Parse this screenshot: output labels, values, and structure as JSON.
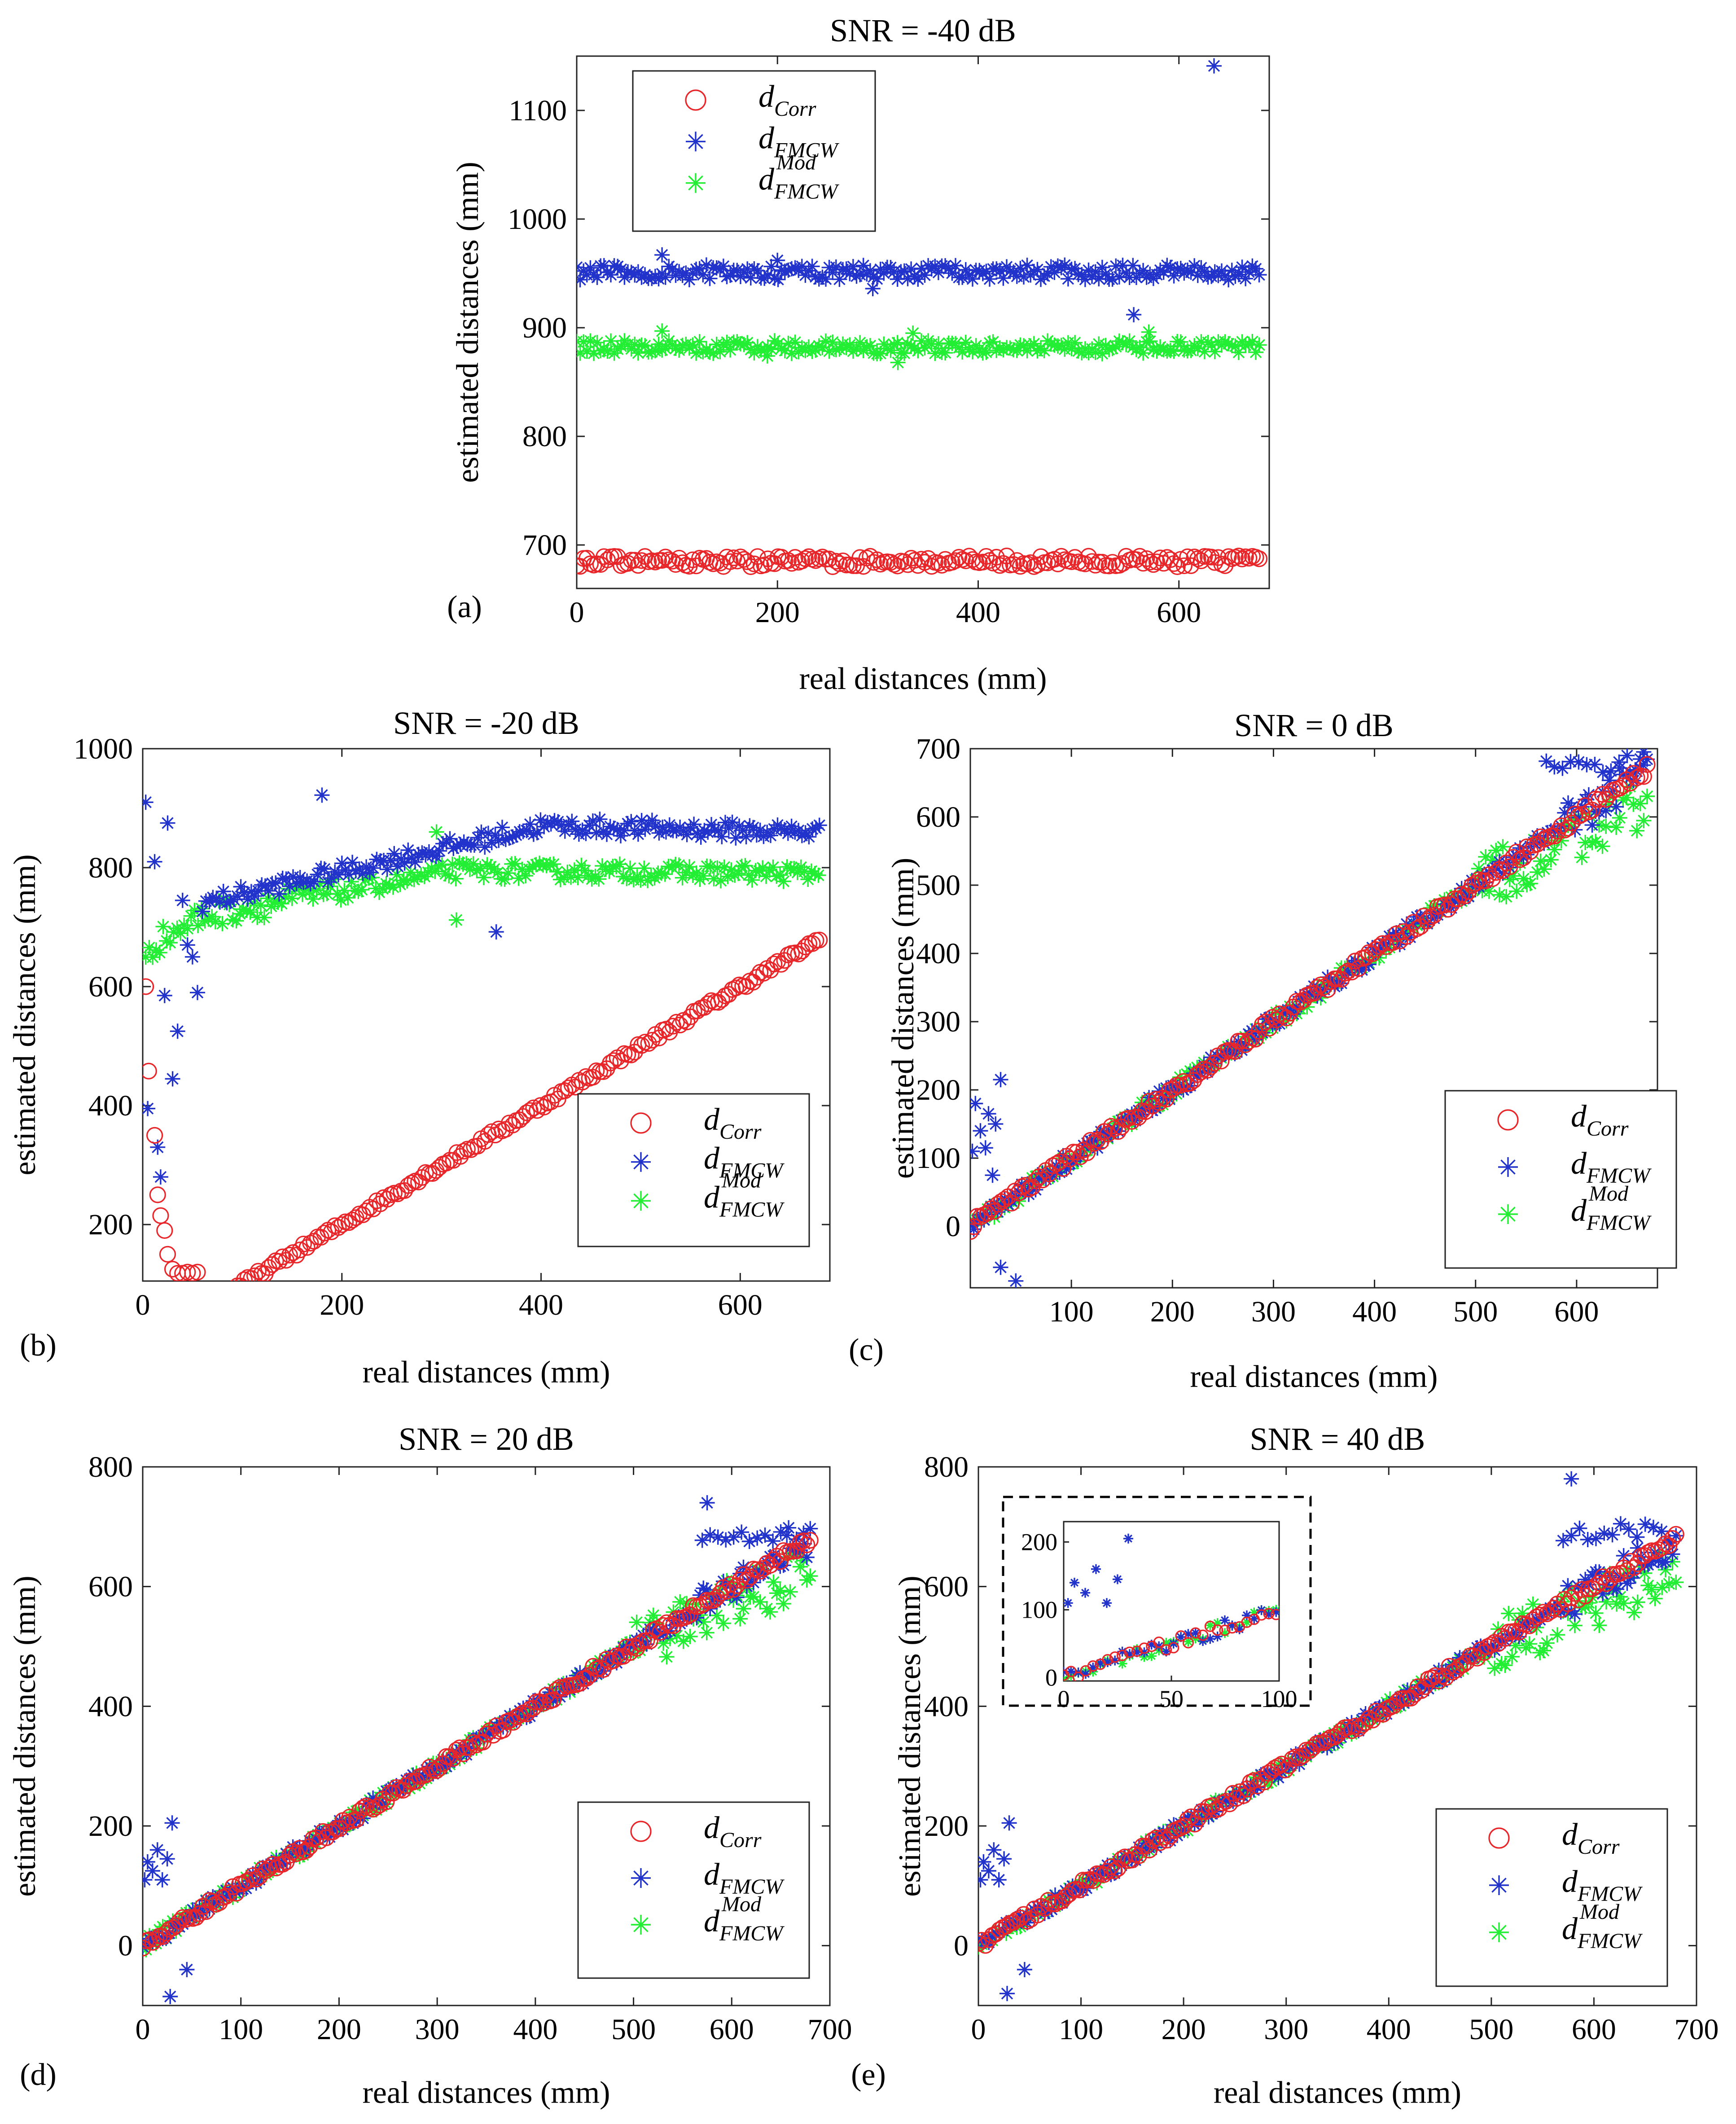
{
  "figure": {
    "description_labels": [
      "(a)",
      "(b)",
      "(c)",
      "(d)",
      "(e)"
    ]
  },
  "colors": {
    "corr": "#e8262a",
    "fmcw": "#2233cc",
    "mod": "#22ee33",
    "axis": "#222222",
    "frame": "#000000"
  },
  "legend_entries": [
    {
      "key": "corr",
      "base": "d",
      "sub": "Corr",
      "sup": "",
      "marker": "circle"
    },
    {
      "key": "fmcw",
      "base": "d",
      "sub": "FMCW",
      "sup": "",
      "marker": "star"
    },
    {
      "key": "mod",
      "base": "d",
      "sub": "FMCW",
      "sup": "Mod",
      "marker": "star"
    }
  ],
  "chart_data": [
    {
      "id": "a",
      "panel_label": "(a)",
      "type": "scatter",
      "title": "SNR = -40 dB",
      "xlabel": "real distances (mm)",
      "ylabel": "estimated distances (mm)",
      "xlim": [
        0,
        690
      ],
      "ylim": [
        660,
        1150
      ],
      "xticks": [
        0,
        200,
        400,
        600
      ],
      "yticks": [
        700,
        800,
        900,
        1000,
        1100
      ],
      "legend_position": "top-left",
      "series": [
        {
          "name": "d_Corr",
          "key": "corr",
          "description": "near-constant ~686 mm across x = 0–680"
        },
        {
          "name": "d_FMCW",
          "key": "fmcw",
          "description": "near-constant ~952 mm; outliers near (85, 967), (200, 962), (295, 936), (555, 912), (635, 1141)"
        },
        {
          "name": "d_FMCW^Mod",
          "key": "mod",
          "description": "near-constant ~882 mm; outliers near (85, 897), (190, 874), (320, 868), (335, 895), (570, 896)"
        }
      ]
    },
    {
      "id": "b",
      "panel_label": "(b)",
      "type": "scatter",
      "title": "SNR = -20 dB",
      "xlabel": "real distances (mm)",
      "ylabel": "estimated distances (mm)",
      "xlim": [
        0,
        690
      ],
      "ylim": [
        105,
        1000
      ],
      "xticks": [
        0,
        200,
        400,
        600
      ],
      "yticks": [
        200,
        400,
        600,
        800,
        1000
      ],
      "legend_position": "bottom-right",
      "series": [
        {
          "name": "d_Corr",
          "key": "corr",
          "description": "starts 600 at x≈5, dips to ~120 at x≈40, then rises linearly to ~680 at x=680"
        },
        {
          "name": "d_FMCW",
          "key": "fmcw",
          "description": "scattered 400–910 for x<60, rises to ~870 plateau by x≈400, ~860 at x=680"
        },
        {
          "name": "d_FMCW^Mod",
          "key": "mod",
          "description": "rises from ~660 to ~800 plateau, ~790 at x=680"
        }
      ]
    },
    {
      "id": "c",
      "panel_label": "(c)",
      "type": "scatter",
      "title": "SNR = 0 dB",
      "xlabel": "real distances (mm)",
      "ylabel": "estimated distances (mm)",
      "xlim": [
        0,
        680
      ],
      "ylim": [
        -90,
        700
      ],
      "xticks": [
        100,
        200,
        300,
        400,
        500,
        600
      ],
      "yticks": [
        0,
        100,
        200,
        300,
        400,
        500,
        600,
        700
      ],
      "legend_position": "bottom-right",
      "series": [
        {
          "name": "d_Corr",
          "key": "corr",
          "description": "linear y ≈ x from 0 to ~670"
        },
        {
          "name": "d_FMCW",
          "key": "fmcw",
          "description": "linear y ≈ x with outliers near x<50 (110–215, and -60/-80); spread 600–690 near x>560"
        },
        {
          "name": "d_FMCW^Mod",
          "key": "mod",
          "description": "linear y ≈ x, spread 550–640 for x>500"
        }
      ]
    },
    {
      "id": "d",
      "panel_label": "(d)",
      "type": "scatter",
      "title": "SNR = 20 dB",
      "xlabel": "real distances (mm)",
      "ylabel": "estimated distances (mm)",
      "xlim": [
        0,
        700
      ],
      "ylim": [
        -100,
        800
      ],
      "xticks": [
        0,
        100,
        200,
        300,
        400,
        500,
        600,
        700
      ],
      "yticks": [
        0,
        200,
        400,
        600,
        800
      ],
      "legend_position": "bottom-right",
      "series": [
        {
          "name": "d_Corr",
          "key": "corr",
          "description": "linear y ≈ x from 0 to ~680"
        },
        {
          "name": "d_FMCW",
          "key": "fmcw",
          "description": "linear y ≈ x with outliers near x<50 (100–200, -40, -85); ~740 outlier at x≈575"
        },
        {
          "name": "d_FMCW^Mod",
          "key": "mod",
          "description": "linear y ≈ x, spread 540–680 for x>500"
        }
      ]
    },
    {
      "id": "e",
      "panel_label": "(e)",
      "type": "scatter",
      "title": "SNR = 40 dB",
      "xlabel": "real distances (mm)",
      "ylabel": "estimated distances (mm)",
      "xlim": [
        0,
        700
      ],
      "ylim": [
        -100,
        800
      ],
      "xticks": [
        0,
        100,
        200,
        300,
        400,
        500,
        600,
        700
      ],
      "yticks": [
        0,
        200,
        400,
        600,
        800
      ],
      "legend_position": "bottom-right",
      "inset": {
        "xlim": [
          0,
          100
        ],
        "ylim": [
          -5,
          230
        ],
        "xticks": [
          0,
          50,
          100
        ],
        "yticks": [
          0,
          100,
          200
        ]
      },
      "series": [
        {
          "name": "d_Corr",
          "key": "corr",
          "description": "linear y ≈ x from 0 to ~680"
        },
        {
          "name": "d_FMCW",
          "key": "fmcw",
          "description": "linear y ≈ x with outliers near x<50 (100–205, -40, -80); ~780 outlier at x≈578"
        },
        {
          "name": "d_FMCW^Mod",
          "key": "mod",
          "description": "linear y ≈ x, spread 540–680 for x>500"
        }
      ]
    }
  ]
}
